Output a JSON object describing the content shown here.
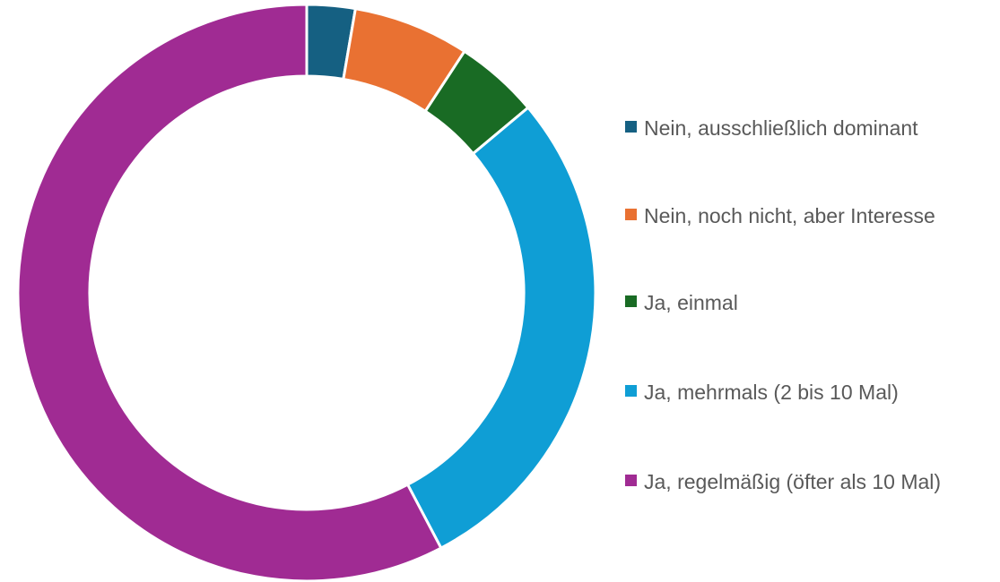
{
  "chart_data": {
    "type": "donut",
    "categories": [
      "Nein, ausschließlich dominant",
      "Nein, noch nicht, aber Interesse",
      "Ja, einmal",
      "Ja, mehrmals (2 bis 10 Mal)",
      "Ja, regelmäßig (öfter als 10 Mal)"
    ],
    "values": [
      2.7,
      6.5,
      4.7,
      28.4,
      57.7
    ],
    "colors": [
      "#156082",
      "#e97132",
      "#196b24",
      "#0f9ed5",
      "#a02b93"
    ],
    "legend": "right"
  }
}
